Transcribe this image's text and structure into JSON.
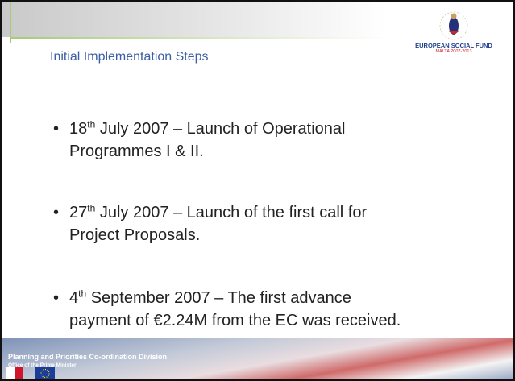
{
  "header": {
    "title": "Initial Implementation Steps",
    "logo_line1": "EUROPEAN SOCIAL FUND",
    "logo_line2": "MALTA 2007-2013"
  },
  "bullets": [
    {
      "day": "18",
      "suffix": "th",
      "line1": " July 2007 – Launch of Operational",
      "line2": "Programmes I & II."
    },
    {
      "day": "27",
      "suffix": "th",
      "line1": " July 2007 – Launch of the first call for",
      "line2": "Project Proposals."
    },
    {
      "day": "4",
      "suffix": "th",
      "line1": " September 2007 – The first advance",
      "line2": "payment of €2.24M from the EC was received."
    }
  ],
  "footer": {
    "division": "Planning and Priorities Co-ordination Division",
    "office": "Office of the Prime Minister"
  }
}
